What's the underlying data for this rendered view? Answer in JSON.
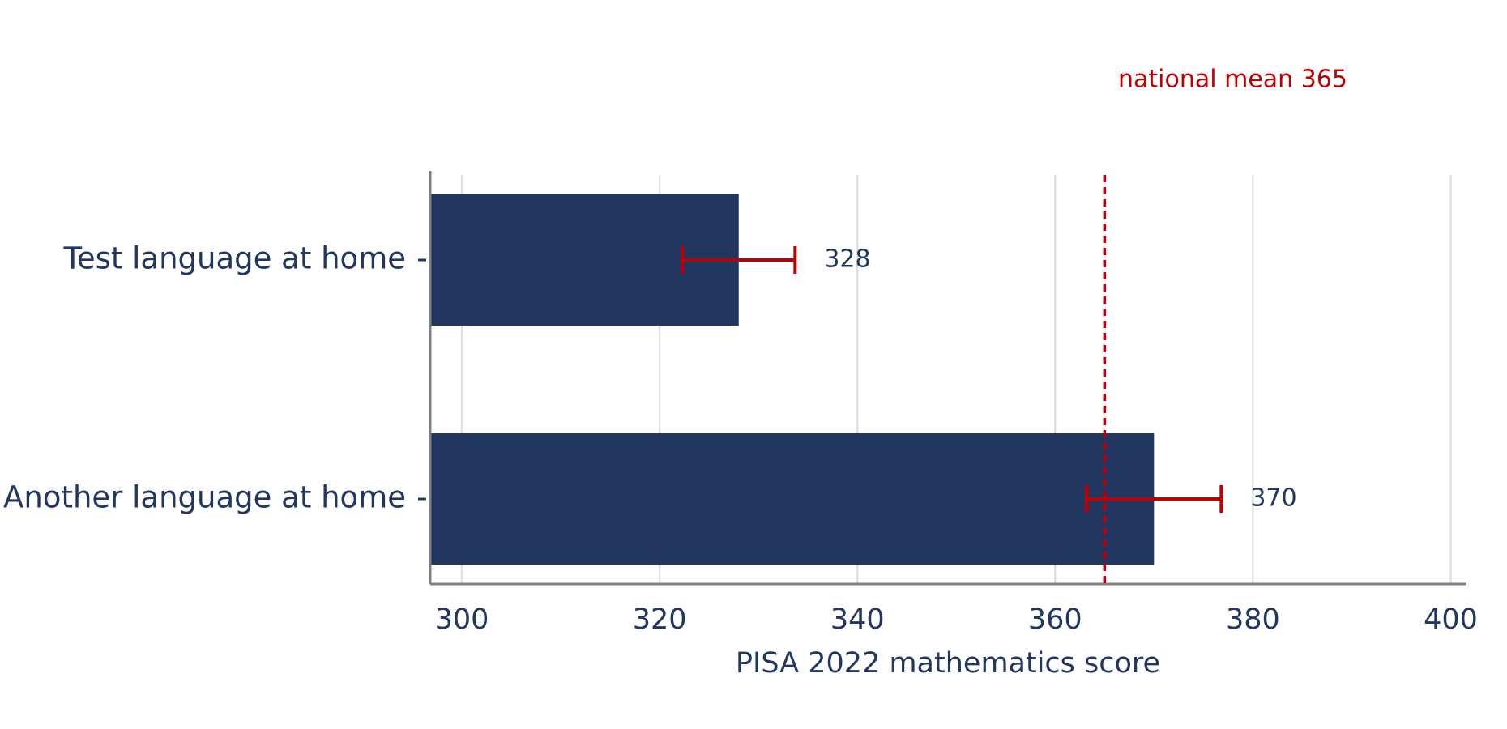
{
  "chart_data": {
    "type": "bar",
    "orientation": "horizontal",
    "categories": [
      "Test language at home",
      "Another language at home"
    ],
    "values": [
      328,
      370
    ],
    "errors": [
      5.7,
      6.8
    ],
    "color": "#22375f",
    "error_color": "#c00000",
    "xlim": [
      296.8,
      401.6
    ],
    "xticks": [
      300,
      320,
      340,
      360,
      380,
      400
    ],
    "xlabel": "PISA 2022 mathematics score",
    "grid": true,
    "reference_value": 365,
    "reference_color": "#c00000",
    "annotation": "national mean 365"
  }
}
